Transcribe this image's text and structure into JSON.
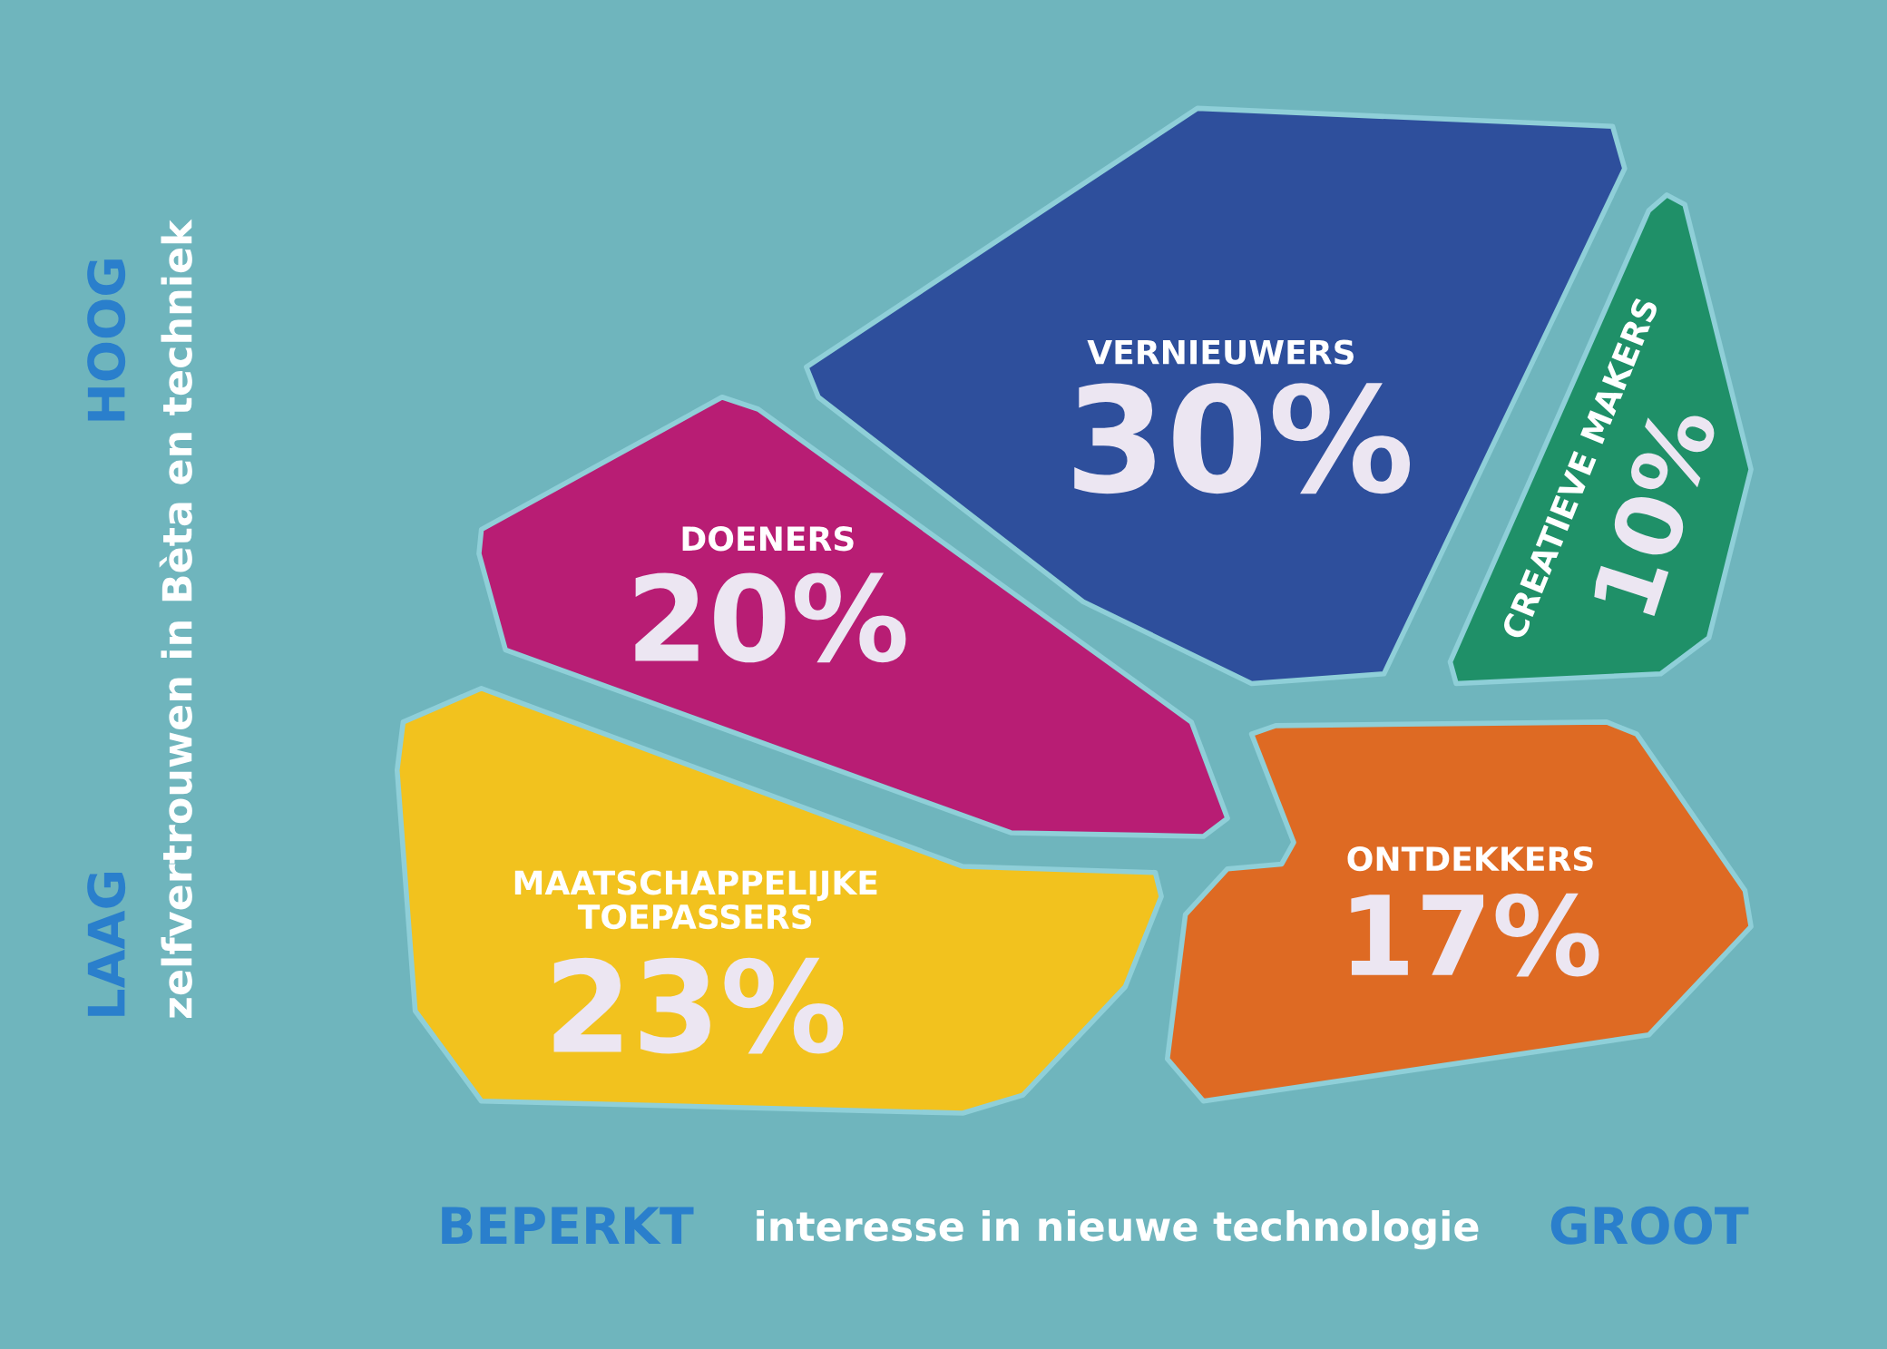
{
  "chart_data": {
    "type": "other",
    "categories": [
      "VERNIEUWERS",
      "DOENERS",
      "CREATIEVE MAKERS",
      "MAATSCHAPPELIJKE TOEPASSERS",
      "ONTDEKKERS"
    ],
    "values": [
      30,
      20,
      10,
      23,
      17
    ],
    "value_labels": [
      "30%",
      "20%",
      "10%",
      "23%",
      "17%"
    ],
    "colors": [
      "#2e4f9c",
      "#b81d74",
      "#1f9068",
      "#f2c21e",
      "#de6a23"
    ],
    "xlabel": "interesse in nieuwe technologie",
    "ylabel": "zelfvertrouwen in Bèta en techniek",
    "annotations": [
      "BEPERKT",
      "GROOT",
      "LAAG",
      "HOOG"
    ]
  }
}
